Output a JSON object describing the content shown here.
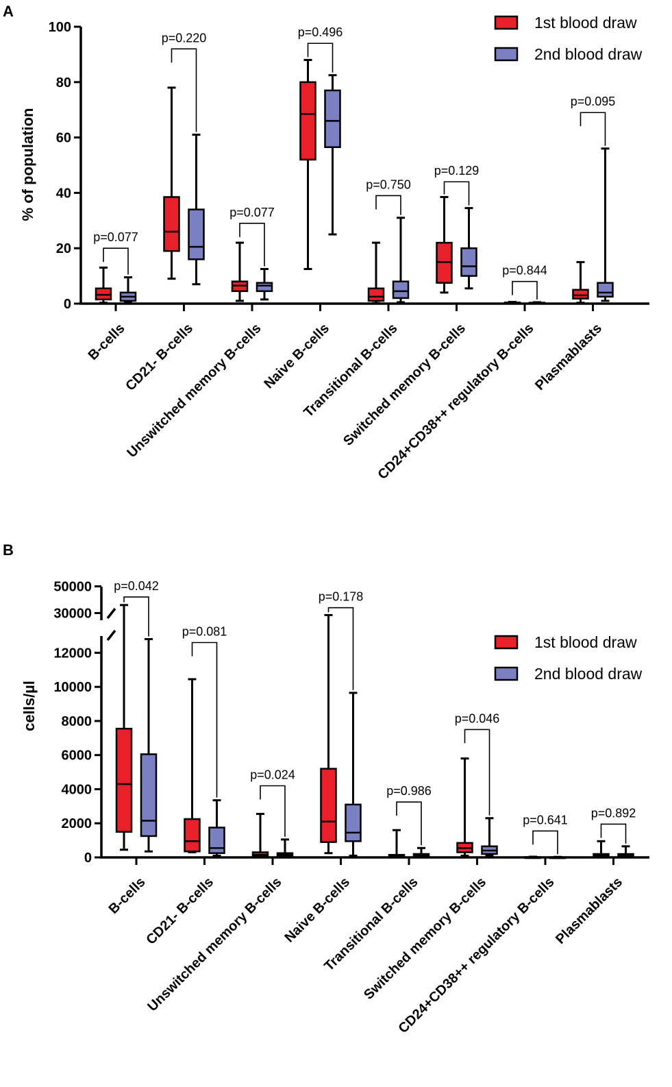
{
  "chart_data": [
    {
      "panel": "A",
      "type": "box",
      "ylabel": "% of population",
      "ylim": [
        0,
        100
      ],
      "yticks": [
        "0",
        "20",
        "40",
        "60",
        "80",
        "100"
      ],
      "categories": [
        "B-cells",
        "CD21- B-cells",
        "Unswitched memory B-cells",
        "Naive B-cells",
        "Transitional B-cells",
        "Switched memory B-cells",
        "CD24+CD38++ regulatory B-cells",
        "Plasmablasts"
      ],
      "legend": [
        {
          "label": "1st blood draw",
          "color": "#e8202a"
        },
        {
          "label": "2nd blood draw",
          "color": "#7b80c2"
        }
      ],
      "pvalues": [
        "p=0.077",
        "p=0.220",
        "p=0.077",
        "p=0.496",
        "p=0.750",
        "p=0.129",
        "p=0.844",
        "p=0.095"
      ],
      "bracket_top": [
        20,
        92,
        29,
        94,
        39,
        44,
        8,
        69
      ],
      "series": [
        {
          "name": "1st blood draw",
          "color": "#e8202a",
          "boxes": [
            {
              "min": 0.3,
              "q1": 1.5,
              "median": 3.2,
              "q3": 5.5,
              "max": 13
            },
            {
              "min": 9,
              "q1": 19,
              "median": 26,
              "q3": 38.5,
              "max": 78
            },
            {
              "min": 1,
              "q1": 4.5,
              "median": 6.5,
              "q3": 8,
              "max": 22
            },
            {
              "min": 12.5,
              "q1": 52,
              "median": 68.5,
              "q3": 80,
              "max": 88
            },
            {
              "min": 0.2,
              "q1": 1,
              "median": 2.5,
              "q3": 5.5,
              "max": 22
            },
            {
              "min": 4,
              "q1": 7.5,
              "median": 15,
              "q3": 22,
              "max": 38.5
            },
            {
              "min": 0.05,
              "q1": 0.1,
              "median": 0.2,
              "q3": 0.4,
              "max": 0.6
            },
            {
              "min": 0.3,
              "q1": 1.8,
              "median": 3,
              "q3": 5,
              "max": 15
            }
          ]
        },
        {
          "name": "2nd blood draw",
          "color": "#7b80c2",
          "boxes": [
            {
              "min": 0.5,
              "q1": 1,
              "median": 2.5,
              "q3": 4,
              "max": 9.5
            },
            {
              "min": 7,
              "q1": 16,
              "median": 20.5,
              "q3": 34,
              "max": 61
            },
            {
              "min": 1.5,
              "q1": 4.5,
              "median": 6.5,
              "q3": 7.5,
              "max": 12.5
            },
            {
              "min": 25,
              "q1": 56.5,
              "median": 66,
              "q3": 77,
              "max": 82.5
            },
            {
              "min": 0.5,
              "q1": 2,
              "median": 4.5,
              "q3": 8,
              "max": 31
            },
            {
              "min": 5.5,
              "q1": 10,
              "median": 13.5,
              "q3": 20,
              "max": 34.5
            },
            {
              "min": 0.05,
              "q1": 0.1,
              "median": 0.2,
              "q3": 0.35,
              "max": 0.5
            },
            {
              "min": 1,
              "q1": 2.5,
              "median": 4,
              "q3": 7.5,
              "max": 56
            }
          ]
        }
      ]
    },
    {
      "panel": "B",
      "type": "box",
      "ylabel": "cells/µl",
      "ylim": [
        0,
        50000
      ],
      "axis_break": [
        14000,
        30000
      ],
      "yticks": [
        "0",
        "2000",
        "4000",
        "6000",
        "8000",
        "10000",
        "12000",
        "30000",
        "50000"
      ],
      "categories": [
        "B-cells",
        "CD21- B-cells",
        "Unswitched memory B-cells",
        "Naive B-cells",
        "Transitional B-cells",
        "Switched memory B-cells",
        "CD24+CD38++ regulatory B-cells",
        "Plasmablasts"
      ],
      "legend": [
        {
          "label": "1st blood draw",
          "color": "#e8202a"
        },
        {
          "label": "2nd blood draw",
          "color": "#7b80c2"
        }
      ],
      "pvalues": [
        "p=0.042",
        "p=0.081",
        "p=0.024",
        "p=0.178",
        "p=0.986",
        "p=0.046",
        "p=0.641",
        "p=0.892"
      ],
      "bracket_top": [
        42000,
        12600,
        4200,
        34000,
        3250,
        7500,
        1550,
        1950
      ],
      "series": [
        {
          "name": "1st blood draw",
          "color": "#e8202a",
          "boxes": [
            {
              "min": 450,
              "q1": 1500,
              "median": 4300,
              "q3": 7550,
              "max": 36000
            },
            {
              "min": 300,
              "q1": 350,
              "median": 950,
              "q3": 2250,
              "max": 10450
            },
            {
              "min": 30,
              "q1": 60,
              "median": 150,
              "q3": 300,
              "max": 2550
            },
            {
              "min": 250,
              "q1": 900,
              "median": 2100,
              "q3": 5200,
              "max": 28500
            },
            {
              "min": 10,
              "q1": 40,
              "median": 80,
              "q3": 150,
              "max": 1600
            },
            {
              "min": 100,
              "q1": 300,
              "median": 550,
              "q3": 850,
              "max": 5800
            },
            {
              "min": 2,
              "q1": 5,
              "median": 10,
              "q3": 20,
              "max": 40
            },
            {
              "min": 20,
              "q1": 70,
              "median": 130,
              "q3": 200,
              "max": 950
            }
          ]
        },
        {
          "name": "2nd blood draw",
          "color": "#7b80c2",
          "boxes": [
            {
              "min": 350,
              "q1": 1250,
              "median": 2150,
              "q3": 6050,
              "max": 12800
            },
            {
              "min": 100,
              "q1": 250,
              "median": 550,
              "q3": 1750,
              "max": 3350
            },
            {
              "min": 40,
              "q1": 80,
              "median": 150,
              "q3": 250,
              "max": 1050
            },
            {
              "min": 100,
              "q1": 950,
              "median": 1450,
              "q3": 3100,
              "max": 9650
            },
            {
              "min": 20,
              "q1": 60,
              "median": 100,
              "q3": 200,
              "max": 550
            },
            {
              "min": 100,
              "q1": 200,
              "median": 400,
              "q3": 650,
              "max": 2300
            },
            {
              "min": 2,
              "q1": 5,
              "median": 8,
              "q3": 15,
              "max": 30
            },
            {
              "min": 20,
              "q1": 60,
              "median": 100,
              "q3": 200,
              "max": 650
            }
          ]
        }
      ]
    }
  ],
  "panel_labels": [
    "A",
    "B"
  ]
}
